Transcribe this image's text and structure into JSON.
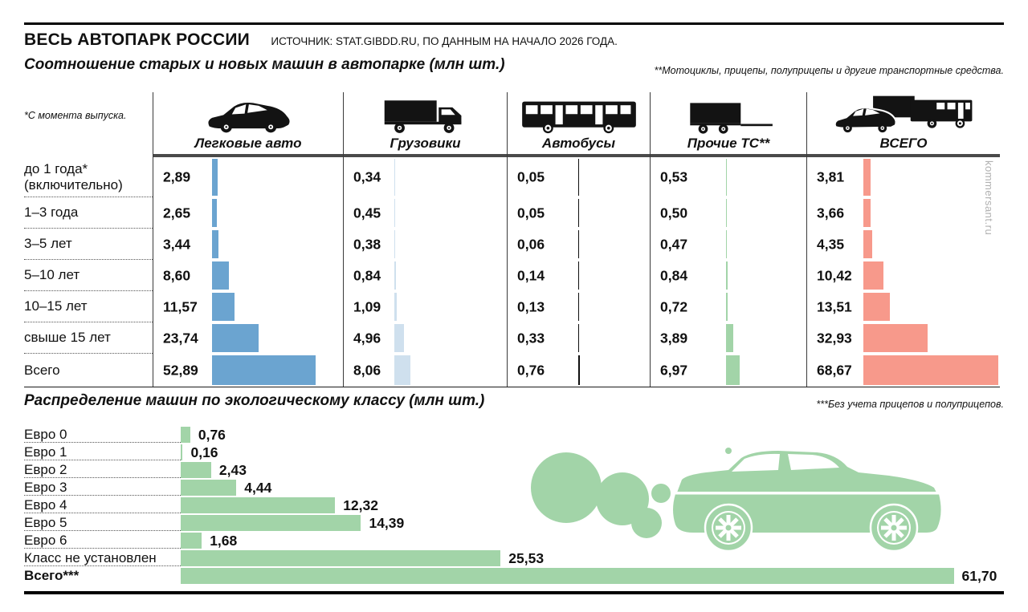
{
  "header": {
    "title": "ВЕСЬ АВТОПАРК РОССИИ",
    "source": "ИСТОЧНИК: STAT.GIBDD.RU, ПО ДАННЫМ НА НАЧАЛО 2026 ГОДА.",
    "watermark": "kommersant.ru"
  },
  "footnotes": {
    "age": "*С момента выпуска.",
    "other_vehicles": "**Мотоциклы, прицепы, полуприцепы и другие транспортные средства.",
    "no_trailers": "***Без учета прицепов и полуприцепов."
  },
  "chart_data": [
    {
      "type": "bar",
      "orientation": "horizontal",
      "title": "Соотношение старых и новых машин в автопарке (млн шт.)",
      "unit": "млн шт.",
      "value_format": "comma-decimal",
      "categories": [
        "до 1 года*\n(включительно)",
        "1–3 года",
        "3–5 лет",
        "5–10 лет",
        "10–15 лет",
        "свыше 15 лет",
        "Всего"
      ],
      "series": [
        {
          "name": "Легковые авто",
          "icon": "car-icon",
          "color": "#6ba4d0",
          "values": [
            2.89,
            2.65,
            3.44,
            8.6,
            11.57,
            23.74,
            52.89
          ]
        },
        {
          "name": "Грузовики",
          "icon": "truck-icon",
          "color": "#cfe0ee",
          "values": [
            0.34,
            0.45,
            0.38,
            0.84,
            1.09,
            4.96,
            8.06
          ]
        },
        {
          "name": "Автобусы",
          "icon": "bus-icon",
          "color": "#101010",
          "values": [
            0.05,
            0.05,
            0.06,
            0.14,
            0.13,
            0.33,
            0.76
          ]
        },
        {
          "name": "Прочие ТС**",
          "icon": "trailer-icon",
          "color": "#a2d4a8",
          "values": [
            0.53,
            0.5,
            0.47,
            0.84,
            0.72,
            3.89,
            6.97
          ]
        },
        {
          "name": "ВСЕГО",
          "icon": "all-vehicles-icon",
          "color": "#f7998b",
          "values": [
            3.81,
            3.66,
            4.35,
            10.42,
            13.51,
            32.93,
            68.67
          ]
        }
      ],
      "legend": "column headers with vehicle icons",
      "grid": false
    },
    {
      "type": "bar",
      "orientation": "horizontal",
      "title": "Распределение машин по экологическому классу (млн шт.)",
      "unit": "млн шт.",
      "value_format": "comma-decimal",
      "color": "#a2d4a8",
      "categories": [
        "Евро 0",
        "Евро 1",
        "Евро 2",
        "Евро 3",
        "Евро 4",
        "Евро 5",
        "Евро 6",
        "Класс не установлен",
        "Всего***"
      ],
      "values": [
        0.76,
        0.16,
        2.43,
        4.44,
        12.32,
        14.39,
        1.68,
        25.53,
        61.7
      ],
      "grid": false
    }
  ]
}
